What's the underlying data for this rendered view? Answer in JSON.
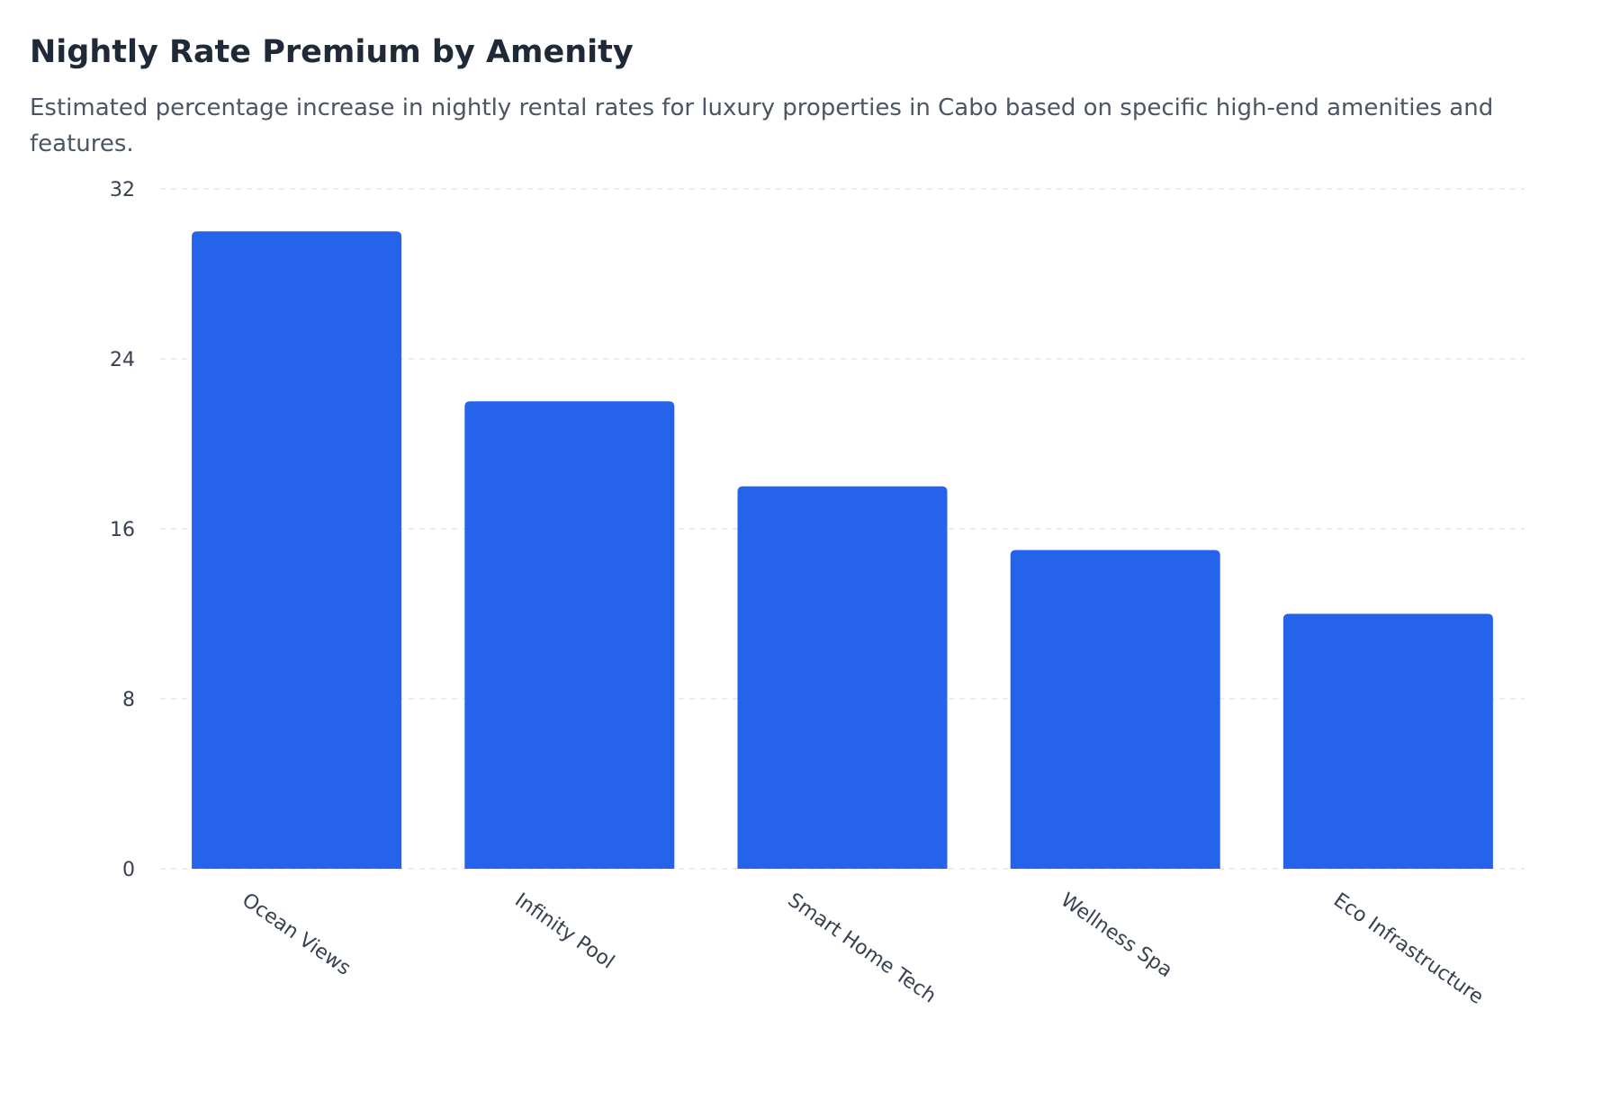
{
  "chart": {
    "title": "Nightly Rate Premium by Amenity",
    "subtitle": "Estimated percentage increase in nightly rental rates for luxury properties in Cabo based on specific high-end amenities and features."
  },
  "colors": {
    "bar": "#2563eb",
    "grid": "#e5e7eb",
    "text": "#374151"
  },
  "chart_data": {
    "type": "bar",
    "categories": [
      "Ocean Views",
      "Infinity Pool",
      "Smart Home Tech",
      "Wellness Spa",
      "Eco Infrastructure"
    ],
    "values": [
      30,
      22,
      18,
      15,
      12
    ],
    "title": "Nightly Rate Premium by Amenity",
    "subtitle": "Estimated percentage increase in nightly rental rates for luxury properties in Cabo based on specific high-end amenities and features.",
    "xlabel": "",
    "ylabel": "",
    "ylim": [
      0,
      32
    ],
    "yticks": [
      0,
      8,
      16,
      24,
      32
    ],
    "grid": true,
    "legend": "none"
  }
}
